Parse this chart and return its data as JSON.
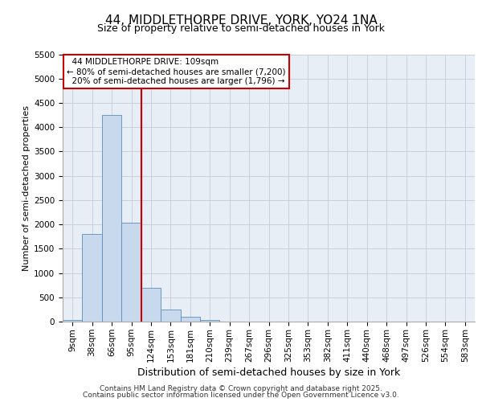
{
  "title1": "44, MIDDLETHORPE DRIVE, YORK, YO24 1NA",
  "title2": "Size of property relative to semi-detached houses in York",
  "xlabel": "Distribution of semi-detached houses by size in York",
  "ylabel": "Number of semi-detached properties",
  "bar_labels": [
    "9sqm",
    "38sqm",
    "66sqm",
    "95sqm",
    "124sqm",
    "153sqm",
    "181sqm",
    "210sqm",
    "239sqm",
    "267sqm",
    "296sqm",
    "325sqm",
    "353sqm",
    "382sqm",
    "411sqm",
    "440sqm",
    "468sqm",
    "497sqm",
    "526sqm",
    "554sqm",
    "583sqm"
  ],
  "bar_values": [
    30,
    1800,
    4250,
    2030,
    700,
    250,
    100,
    30,
    5,
    2,
    1,
    1,
    0,
    0,
    0,
    0,
    0,
    0,
    0,
    0,
    0
  ],
  "bar_color": "#c9d9ed",
  "bar_edge_color": "#5b8db8",
  "property_label": "44 MIDDLETHORPE DRIVE: 109sqm",
  "smaller_pct": "80%",
  "smaller_count": "7,200",
  "larger_pct": "20%",
  "larger_count": "1,796",
  "vline_color": "#cc0000",
  "annotation_box_color": "#cc0000",
  "vline_x": 3.5,
  "ylim": [
    0,
    5500
  ],
  "yticks": [
    0,
    500,
    1000,
    1500,
    2000,
    2500,
    3000,
    3500,
    4000,
    4500,
    5000,
    5500
  ],
  "grid_color": "#c8d0dc",
  "bg_color": "#e8eef5",
  "footer1": "Contains HM Land Registry data © Crown copyright and database right 2025.",
  "footer2": "Contains public sector information licensed under the Open Government Licence v3.0.",
  "title1_fontsize": 11,
  "title2_fontsize": 9,
  "ylabel_fontsize": 8,
  "xlabel_fontsize": 9,
  "tick_fontsize": 7.5,
  "xtick_fontsize": 7.5,
  "ann_fontsize": 7.5,
  "footer_fontsize": 6.5
}
